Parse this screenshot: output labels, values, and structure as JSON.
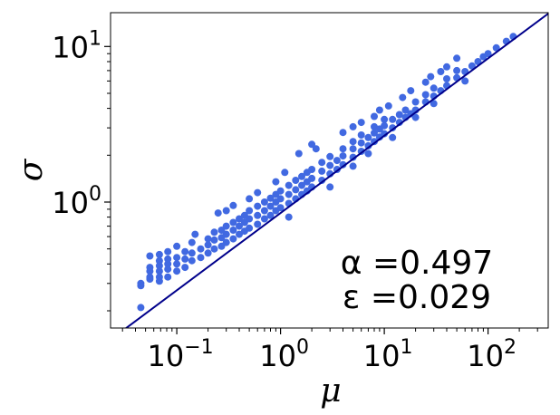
{
  "chart_data": {
    "type": "scatter",
    "title": "",
    "xlabel": "μ",
    "ylabel": "σ",
    "x_scale": "log",
    "y_scale": "log",
    "xlim": [
      0.023,
      380
    ],
    "ylim": [
      0.155,
      16.5
    ],
    "grid": false,
    "legend": "none",
    "colors": {
      "points": "#4169e1",
      "fit_line": "#00008b"
    },
    "x_ticks": [
      {
        "value": 0.1,
        "base": "10",
        "exp": "−1"
      },
      {
        "value": 1,
        "base": "10",
        "exp": "0"
      },
      {
        "value": 10,
        "base": "10",
        "exp": "1"
      },
      {
        "value": 100,
        "base": "10",
        "exp": "2"
      }
    ],
    "y_ticks": [
      {
        "value": 1,
        "base": "10",
        "exp": "0"
      },
      {
        "value": 10,
        "base": "10",
        "exp": "1"
      }
    ],
    "fit_line": {
      "exponent": 0.497,
      "coefficient": 0.85
    },
    "annotations": {
      "alpha": "α =0.497",
      "epsilon": "ε =0.029"
    },
    "series": [
      {
        "points": [
          [
            0.045,
            0.21
          ],
          [
            0.045,
            0.29
          ],
          [
            0.045,
            0.3
          ],
          [
            0.055,
            0.32
          ],
          [
            0.055,
            0.33
          ],
          [
            0.055,
            0.36
          ],
          [
            0.055,
            0.38
          ],
          [
            0.055,
            0.45
          ],
          [
            0.068,
            0.31
          ],
          [
            0.068,
            0.33
          ],
          [
            0.068,
            0.36
          ],
          [
            0.068,
            0.39
          ],
          [
            0.068,
            0.42
          ],
          [
            0.068,
            0.46
          ],
          [
            0.082,
            0.33
          ],
          [
            0.082,
            0.37
          ],
          [
            0.082,
            0.4
          ],
          [
            0.082,
            0.43
          ],
          [
            0.082,
            0.48
          ],
          [
            0.1,
            0.36
          ],
          [
            0.1,
            0.4
          ],
          [
            0.1,
            0.44
          ],
          [
            0.1,
            0.52
          ],
          [
            0.12,
            0.38
          ],
          [
            0.12,
            0.43
          ],
          [
            0.12,
            0.48
          ],
          [
            0.14,
            0.42
          ],
          [
            0.14,
            0.47
          ],
          [
            0.14,
            0.55
          ],
          [
            0.15,
            0.62
          ],
          [
            0.17,
            0.44
          ],
          [
            0.17,
            0.5
          ],
          [
            0.2,
            0.47
          ],
          [
            0.2,
            0.53
          ],
          [
            0.2,
            0.58
          ],
          [
            0.23,
            0.5
          ],
          [
            0.23,
            0.57
          ],
          [
            0.23,
            0.64
          ],
          [
            0.27,
            0.52
          ],
          [
            0.27,
            0.59
          ],
          [
            0.27,
            0.66
          ],
          [
            0.3,
            0.55
          ],
          [
            0.3,
            0.62
          ],
          [
            0.3,
            0.7
          ],
          [
            0.35,
            0.58
          ],
          [
            0.35,
            0.66
          ],
          [
            0.35,
            0.74
          ],
          [
            0.4,
            0.62
          ],
          [
            0.4,
            0.7
          ],
          [
            0.4,
            0.78
          ],
          [
            0.45,
            0.65
          ],
          [
            0.45,
            0.74
          ],
          [
            0.45,
            0.82
          ],
          [
            0.5,
            0.68
          ],
          [
            0.5,
            0.78
          ],
          [
            0.5,
            0.88
          ],
          [
            0.6,
            0.72
          ],
          [
            0.6,
            0.82
          ],
          [
            0.6,
            0.94
          ],
          [
            0.7,
            0.78
          ],
          [
            0.7,
            0.88
          ],
          [
            0.7,
            1.0
          ],
          [
            0.8,
            0.82
          ],
          [
            0.8,
            0.94
          ],
          [
            0.8,
            1.06
          ],
          [
            0.9,
            0.88
          ],
          [
            0.9,
            1.0
          ],
          [
            0.9,
            1.12
          ],
          [
            1.0,
            0.92
          ],
          [
            1.0,
            1.05
          ],
          [
            1.0,
            1.18
          ],
          [
            1.2,
            0.98
          ],
          [
            1.2,
            1.12
          ],
          [
            1.2,
            1.28
          ],
          [
            1.4,
            1.05
          ],
          [
            1.4,
            1.2
          ],
          [
            1.4,
            1.38
          ],
          [
            1.6,
            1.12
          ],
          [
            1.6,
            1.28
          ],
          [
            1.6,
            1.46
          ],
          [
            1.8,
            1.18
          ],
          [
            1.8,
            1.35
          ],
          [
            1.8,
            1.55
          ],
          [
            2.0,
            1.25
          ],
          [
            2.0,
            1.42
          ],
          [
            2.0,
            1.62
          ],
          [
            2.5,
            1.38
          ],
          [
            2.5,
            1.58
          ],
          [
            2.5,
            1.8
          ],
          [
            3.0,
            1.52
          ],
          [
            3.0,
            1.72
          ],
          [
            3.0,
            1.96
          ],
          [
            3.5,
            1.62
          ],
          [
            3.5,
            1.85
          ],
          [
            4.0,
            1.74
          ],
          [
            4.0,
            1.98
          ],
          [
            4.0,
            2.2
          ],
          [
            5.0,
            1.94
          ],
          [
            5.0,
            2.2
          ],
          [
            5.0,
            2.45
          ],
          [
            6.0,
            2.12
          ],
          [
            6.0,
            2.4
          ],
          [
            6.0,
            2.7
          ],
          [
            7.0,
            2.3
          ],
          [
            7.0,
            2.6
          ],
          [
            8.0,
            2.45
          ],
          [
            8.0,
            2.78
          ],
          [
            8.0,
            3.05
          ],
          [
            9.0,
            2.62
          ],
          [
            9.0,
            2.95
          ],
          [
            10.0,
            2.75
          ],
          [
            10.0,
            3.1
          ],
          [
            10.0,
            3.4
          ],
          [
            12.0,
            3.0
          ],
          [
            12.0,
            3.4
          ],
          [
            14.0,
            3.25
          ],
          [
            14.0,
            3.65
          ],
          [
            16.0,
            3.5
          ],
          [
            16.0,
            3.9
          ],
          [
            18.0,
            3.7
          ],
          [
            20.0,
            3.9
          ],
          [
            20.0,
            4.4
          ],
          [
            25.0,
            4.4
          ],
          [
            25.0,
            4.9
          ],
          [
            30.0,
            4.8
          ],
          [
            30.0,
            5.4
          ],
          [
            35.0,
            5.2
          ],
          [
            40.0,
            5.6
          ],
          [
            40.0,
            6.2
          ],
          [
            50.0,
            6.3
          ],
          [
            50.0,
            7.0
          ],
          [
            60.0,
            6.9
          ],
          [
            70.0,
            7.5
          ],
          [
            80.0,
            8.0
          ],
          [
            90.0,
            8.6
          ],
          [
            100.0,
            9.0
          ],
          [
            120.0,
            9.8
          ],
          [
            150.0,
            10.8
          ],
          [
            175.0,
            11.6
          ],
          [
            2.0,
            2.35
          ],
          [
            3.0,
            1.25
          ],
          [
            4.0,
            2.8
          ],
          [
            0.25,
            0.85
          ],
          [
            0.3,
            0.88
          ],
          [
            0.6,
            1.15
          ],
          [
            1.2,
            0.8
          ],
          [
            1.5,
            2.05
          ],
          [
            2.2,
            2.2
          ],
          [
            5.0,
            3.05
          ],
          [
            5.0,
            1.7
          ],
          [
            6.0,
            3.25
          ],
          [
            7.0,
            2.05
          ],
          [
            8.0,
            3.55
          ],
          [
            11.0,
            4.15
          ],
          [
            12.0,
            2.6
          ],
          [
            15.0,
            4.7
          ],
          [
            18.0,
            5.2
          ],
          [
            20.0,
            3.5
          ],
          [
            25.0,
            5.9
          ],
          [
            28.0,
            6.4
          ],
          [
            30.0,
            4.3
          ],
          [
            35.0,
            6.9
          ],
          [
            40.0,
            7.4
          ],
          [
            50.0,
            8.4
          ],
          [
            60.0,
            6.0
          ],
          [
            0.35,
            0.95
          ],
          [
            0.5,
            1.05
          ],
          [
            0.9,
            1.35
          ],
          [
            1.1,
            1.55
          ],
          [
            9.0,
            3.9
          ]
        ]
      }
    ]
  }
}
